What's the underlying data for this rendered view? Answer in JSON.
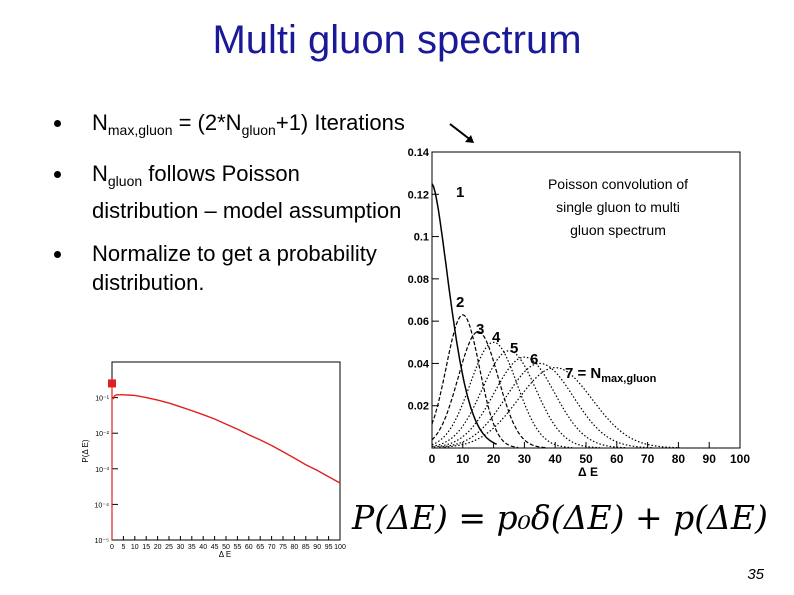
{
  "slide": {
    "title": "Multi gluon spectrum",
    "bullets": [
      {
        "main": "N",
        "sub": "max,gluon",
        "rest": " = (2*N",
        "sub2": "gluon",
        "tail": "+1) Iterations"
      },
      {
        "main": "N",
        "sub": "gluon",
        "rest": " follows Poisson distribution – model assumption"
      },
      {
        "main": "Normalize to get a probability distribution."
      }
    ],
    "formula": {
      "lhs": "P(ΔE)",
      "eq": "=",
      "term1": "p₀δ(ΔE)",
      "plus": "+",
      "term2": "p(ΔE)"
    },
    "page_number": "35"
  },
  "chart_data": [
    {
      "type": "line",
      "xlabel": "Δ E",
      "ylabel": "",
      "xlim": [
        0,
        100
      ],
      "ylim": [
        0,
        0.14
      ],
      "x_ticks": [
        0,
        10,
        20,
        30,
        40,
        50,
        60,
        70,
        80,
        90,
        100
      ],
      "y_ticks": [
        0.02,
        0.04,
        0.06,
        0.08,
        0.1,
        0.12,
        0.14
      ],
      "grid": false,
      "annotation": "Poisson convolution of single gluon to multi gluon spectrum",
      "curve_labels": [
        "1",
        "2",
        "3",
        "4",
        "5",
        "6"
      ],
      "last_label": {
        "main": "7 = N",
        "sub": "max,gluon"
      },
      "series": [
        {
          "label": "1",
          "mean": 0,
          "peak": 0.125,
          "style": "solid",
          "shape": "decay"
        },
        {
          "label": "2",
          "mean": 10,
          "peak": 0.063,
          "style": "dashed",
          "shape": "gauss"
        },
        {
          "label": "3",
          "mean": 15,
          "peak": 0.055,
          "style": "dashed",
          "shape": "gauss"
        },
        {
          "label": "4",
          "mean": 20,
          "peak": 0.05,
          "style": "dotted",
          "shape": "gauss"
        },
        {
          "label": "5",
          "mean": 25,
          "peak": 0.046,
          "style": "dotted",
          "shape": "gauss"
        },
        {
          "label": "6",
          "mean": 30,
          "peak": 0.043,
          "style": "dotted",
          "shape": "gauss"
        },
        {
          "label": "",
          "mean": 35,
          "peak": 0.04,
          "style": "dotted",
          "shape": "gauss"
        },
        {
          "label": "7",
          "mean": 40,
          "peak": 0.038,
          "style": "dotted",
          "shape": "gauss"
        }
      ]
    },
    {
      "type": "line",
      "xlabel": "Δ E",
      "ylabel": "P(Δ E)",
      "xlim": [
        0,
        100
      ],
      "yscale": "log",
      "ylim": [
        1e-05,
        1
      ],
      "x_ticks": [
        0,
        5,
        10,
        15,
        20,
        25,
        30,
        35,
        40,
        45,
        50,
        55,
        60,
        65,
        70,
        75,
        80,
        85,
        90,
        95,
        100
      ],
      "y_tick_labels": [
        "10⁻¹",
        "10⁻²",
        "10⁻³",
        "10⁻⁴",
        "10⁻⁵"
      ],
      "y_tick_values": [
        0.1,
        0.01,
        0.001,
        0.0001,
        1e-05
      ],
      "delta_point": {
        "x": 0,
        "y": 0.25
      },
      "curve": {
        "x": [
          0.5,
          1,
          2,
          5,
          10,
          15,
          20,
          25,
          30,
          35,
          40,
          45,
          50,
          55,
          60,
          65,
          70,
          75,
          80,
          85,
          90,
          95,
          100
        ],
        "y": [
          0.09,
          0.11,
          0.12,
          0.12,
          0.115,
          0.1,
          0.085,
          0.07,
          0.055,
          0.043,
          0.033,
          0.025,
          0.018,
          0.013,
          0.009,
          0.0065,
          0.0045,
          0.003,
          0.002,
          0.0013,
          0.0009,
          0.0006,
          0.0004
        ]
      },
      "color": "#e02020"
    }
  ]
}
